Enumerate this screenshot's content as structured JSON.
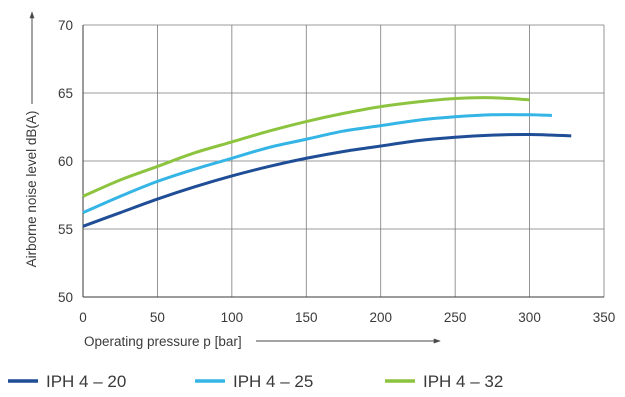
{
  "chart_data": {
    "type": "line",
    "xlabel": "Operating pressure p [bar]",
    "ylabel": "Airborne noise level dB(A)",
    "xlim": [
      0,
      350
    ],
    "ylim": [
      50,
      70
    ],
    "xticks": [
      0,
      50,
      100,
      150,
      200,
      250,
      300,
      350
    ],
    "yticks": [
      50,
      55,
      60,
      65,
      70
    ],
    "grid": true,
    "legend_position": "bottom",
    "series": [
      {
        "name": "IPH 4 – 20",
        "color": "#1f4e96",
        "x": [
          0,
          25,
          50,
          75,
          100,
          125,
          150,
          175,
          200,
          225,
          250,
          275,
          300,
          328
        ],
        "y": [
          55.2,
          56.2,
          57.2,
          58.1,
          58.9,
          59.6,
          60.2,
          60.7,
          61.1,
          61.5,
          61.75,
          61.9,
          61.95,
          61.85
        ]
      },
      {
        "name": "IPH 4 – 25",
        "color": "#34b5e5",
        "x": [
          0,
          25,
          50,
          75,
          100,
          125,
          150,
          175,
          200,
          225,
          250,
          275,
          300,
          315
        ],
        "y": [
          56.2,
          57.4,
          58.5,
          59.4,
          60.2,
          61.0,
          61.6,
          62.2,
          62.6,
          63.0,
          63.25,
          63.4,
          63.4,
          63.35
        ]
      },
      {
        "name": "IPH 4 – 32",
        "color": "#8dc43f",
        "x": [
          0,
          25,
          50,
          75,
          100,
          125,
          150,
          175,
          200,
          225,
          250,
          275,
          300
        ],
        "y": [
          57.4,
          58.6,
          59.6,
          60.6,
          61.4,
          62.2,
          62.9,
          63.5,
          64.0,
          64.35,
          64.6,
          64.65,
          64.5
        ]
      }
    ]
  }
}
